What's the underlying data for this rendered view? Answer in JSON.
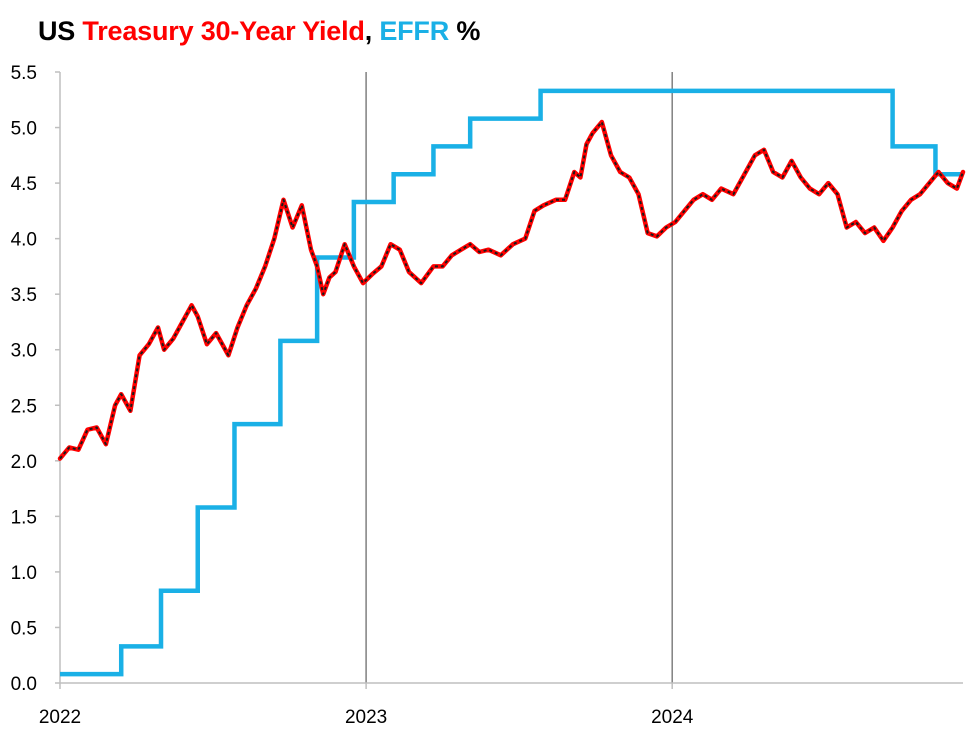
{
  "chart_data": {
    "type": "line",
    "title_parts": [
      {
        "text": "US ",
        "color": "#000000"
      },
      {
        "text": "Treasury 30-Year Yield",
        "color": "#ff0000"
      },
      {
        "text": ", ",
        "color": "#000000"
      },
      {
        "text": "EFFR",
        "color": "#1ab0e6"
      },
      {
        "text": " %",
        "color": "#000000"
      }
    ],
    "xlabel": "",
    "ylabel": "",
    "xlim": [
      2022.0,
      2024.95
    ],
    "ylim": [
      0.0,
      5.5
    ],
    "y_ticks": [
      "0.0",
      "0.5",
      "1.0",
      "1.5",
      "2.0",
      "2.5",
      "3.0",
      "3.5",
      "4.0",
      "4.5",
      "5.0",
      "5.5"
    ],
    "x_ticks": [
      {
        "value": 2022,
        "label": "2022"
      },
      {
        "value": 2023,
        "label": "2023"
      },
      {
        "value": 2024,
        "label": "2024"
      }
    ],
    "vertical_gridlines_at": [
      2023,
      2024
    ],
    "horizontal_grid": false,
    "series": [
      {
        "style": "step",
        "color": "#1ab0e6",
        "x": [
          2022.0,
          2022.2,
          2022.33,
          2022.45,
          2022.57,
          2022.72,
          2022.84,
          2022.96,
          2023.09,
          2023.22,
          2023.34,
          2023.57,
          2024.72,
          2024.86
        ],
        "y": [
          0.08,
          0.33,
          0.83,
          1.58,
          2.33,
          3.08,
          3.83,
          4.33,
          4.58,
          4.83,
          5.08,
          5.33,
          4.83,
          4.58
        ]
      },
      {
        "style": "line",
        "color": "#ff0000",
        "overlay_color": "#1a1a1a",
        "x": [
          2022.0,
          2022.03,
          2022.06,
          2022.09,
          2022.12,
          2022.15,
          2022.18,
          2022.2,
          2022.23,
          2022.26,
          2022.29,
          2022.32,
          2022.34,
          2022.37,
          2022.4,
          2022.43,
          2022.45,
          2022.48,
          2022.51,
          2022.55,
          2022.58,
          2022.61,
          2022.64,
          2022.67,
          2022.7,
          2022.73,
          2022.76,
          2022.79,
          2022.82,
          2022.84,
          2022.86,
          2022.88,
          2022.9,
          2022.93,
          2022.96,
          2022.99,
          2023.02,
          2023.05,
          2023.08,
          2023.11,
          2023.14,
          2023.18,
          2023.22,
          2023.25,
          2023.28,
          2023.31,
          2023.34,
          2023.37,
          2023.4,
          2023.44,
          2023.48,
          2023.52,
          2023.55,
          2023.58,
          2023.62,
          2023.65,
          2023.68,
          2023.7,
          2023.72,
          2023.74,
          2023.77,
          2023.8,
          2023.83,
          2023.86,
          2023.89,
          2023.92,
          2023.95,
          2023.98,
          2024.01,
          2024.04,
          2024.07,
          2024.1,
          2024.13,
          2024.16,
          2024.2,
          2024.24,
          2024.27,
          2024.3,
          2024.33,
          2024.36,
          2024.39,
          2024.42,
          2024.45,
          2024.48,
          2024.51,
          2024.54,
          2024.57,
          2024.6,
          2024.63,
          2024.66,
          2024.69,
          2024.72,
          2024.75,
          2024.78,
          2024.81,
          2024.84,
          2024.87,
          2024.9,
          2024.93,
          2024.95
        ],
        "y": [
          2.02,
          2.12,
          2.1,
          2.28,
          2.3,
          2.15,
          2.5,
          2.6,
          2.45,
          2.95,
          3.05,
          3.2,
          3.0,
          3.1,
          3.25,
          3.4,
          3.3,
          3.05,
          3.15,
          2.95,
          3.2,
          3.4,
          3.55,
          3.75,
          4.0,
          4.35,
          4.1,
          4.3,
          3.9,
          3.75,
          3.5,
          3.65,
          3.7,
          3.95,
          3.75,
          3.6,
          3.68,
          3.75,
          3.95,
          3.9,
          3.7,
          3.6,
          3.75,
          3.75,
          3.85,
          3.9,
          3.95,
          3.88,
          3.9,
          3.85,
          3.95,
          4.0,
          4.25,
          4.3,
          4.35,
          4.35,
          4.6,
          4.55,
          4.85,
          4.95,
          5.05,
          4.75,
          4.6,
          4.55,
          4.4,
          4.05,
          4.02,
          4.1,
          4.15,
          4.25,
          4.35,
          4.4,
          4.35,
          4.45,
          4.4,
          4.6,
          4.75,
          4.8,
          4.6,
          4.55,
          4.7,
          4.55,
          4.45,
          4.4,
          4.5,
          4.4,
          4.1,
          4.15,
          4.05,
          4.1,
          3.98,
          4.1,
          4.25,
          4.35,
          4.4,
          4.5,
          4.6,
          4.5,
          4.45,
          4.6
        ]
      }
    ]
  }
}
